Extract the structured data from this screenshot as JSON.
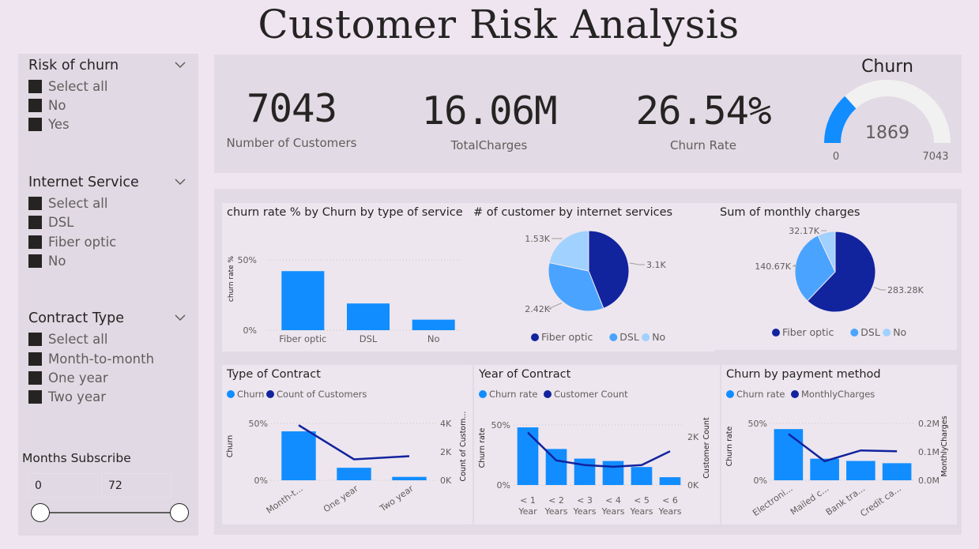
{
  "page_title": "Customer Risk Analysis",
  "slicers": {
    "risk": {
      "title": "Risk of churn",
      "options": [
        "Select all",
        "No",
        "Yes"
      ]
    },
    "internet": {
      "title": "Internet Service",
      "options": [
        "Select all",
        "DSL",
        "Fiber optic",
        "No"
      ]
    },
    "contract": {
      "title": "Contract Type",
      "options": [
        "Select all",
        "Month-to-month",
        "One year",
        "Two year"
      ]
    },
    "months": {
      "title": "Months Subscribe",
      "min": "0",
      "max": "72"
    }
  },
  "kpis": {
    "customers": {
      "value": "7043",
      "label": "Number of Customers"
    },
    "charges": {
      "value": "16.06M",
      "label": "TotalCharges"
    },
    "churn_rate": {
      "value": "26.54%",
      "label": "Churn Rate"
    }
  },
  "colors": {
    "blue": "#118dff",
    "navy": "#12239e",
    "light": "#a0d1ff",
    "mid": "#4aa4ff",
    "gauge_track": "#f1f1f1"
  },
  "chart_data": [
    {
      "id": "gauge",
      "type": "gauge",
      "title": "Churn",
      "value": 1869,
      "min": 0,
      "max": 7043,
      "labels": {
        "value": "1869",
        "min": "0",
        "max": "7043"
      }
    },
    {
      "id": "bar1",
      "type": "bar",
      "title": "churn rate % by Churn by type of service",
      "categories": [
        "Fiber optic",
        "DSL",
        "No"
      ],
      "values": [
        42,
        19,
        7.5
      ],
      "ylabel": "churn rate %",
      "ylim": [
        0,
        50
      ],
      "yticks": [
        "0%",
        "50%"
      ]
    },
    {
      "id": "pie1",
      "type": "pie",
      "title": "# of customer by internet services",
      "slices": [
        {
          "name": "Fiber optic",
          "value": 3.1,
          "label": "3.1K"
        },
        {
          "name": "DSL",
          "value": 2.42,
          "label": "2.42K"
        },
        {
          "name": "No",
          "value": 1.53,
          "label": "1.53K"
        }
      ],
      "legend": [
        "Fiber optic",
        "DSL",
        "No"
      ]
    },
    {
      "id": "pie2",
      "type": "pie",
      "title": "Sum of monthly charges",
      "slices": [
        {
          "name": "Fiber optic",
          "value": 283.28,
          "label": "283.28K"
        },
        {
          "name": "DSL",
          "value": 140.67,
          "label": "140.67K"
        },
        {
          "name": "No",
          "value": 32.17,
          "label": "32.17K"
        }
      ],
      "legend": [
        "Fiber optic",
        "DSL",
        "No"
      ]
    },
    {
      "id": "combo1",
      "type": "bar",
      "title": "Type of Contract",
      "legend": [
        "Churn",
        "Count of Customers"
      ],
      "categories": [
        "Month-t...",
        "One year",
        "Two year"
      ],
      "series": [
        {
          "name": "Churn",
          "kind": "bar",
          "values": [
            43,
            11,
            3
          ]
        },
        {
          "name": "Count of Customers",
          "kind": "line",
          "values": [
            3875,
            1473,
            1695
          ]
        }
      ],
      "ylabel": "Churn",
      "y2label": "Count of Custom...",
      "ylim": [
        0,
        50
      ],
      "y2lim": [
        0,
        4000
      ],
      "yticks": [
        "0%",
        "50%"
      ],
      "y2ticks": [
        "0K",
        "2K",
        "4K"
      ]
    },
    {
      "id": "combo2",
      "type": "bar",
      "title": "Year of Contract",
      "legend": [
        "Churn rate",
        "Customer Count"
      ],
      "categories": [
        "< 1 Year",
        "< 2 Years",
        "< 3 Years",
        "< 4 Years",
        "< 5 Years",
        "< 6 Years"
      ],
      "series": [
        {
          "name": "Churn rate",
          "kind": "bar",
          "values": [
            48,
            30,
            22,
            20,
            15,
            6.5
          ]
        },
        {
          "name": "Customer Count",
          "kind": "line",
          "values": [
            2186,
            1024,
            832,
            762,
            832,
            1407
          ]
        }
      ],
      "ylabel": "Churn rate",
      "y2label": "Customer Count",
      "ylim": [
        0,
        50
      ],
      "y2lim": [
        0,
        2500
      ],
      "yticks": [
        "0%",
        "50%"
      ],
      "y2ticks": [
        "0K",
        "2K"
      ]
    },
    {
      "id": "combo3",
      "type": "bar",
      "title": "Churn by payment method",
      "legend": [
        "Churn rate",
        "MonthlyCharges"
      ],
      "categories": [
        "Electroni...",
        "Mailed c...",
        "Bank tra...",
        "Credit ca..."
      ],
      "series": [
        {
          "name": "Churn rate",
          "kind": "bar",
          "values": [
            45,
            19,
            17,
            15
          ]
        },
        {
          "name": "MonthlyCharges",
          "kind": "line",
          "values": [
            0.163,
            0.067,
            0.105,
            0.102
          ]
        }
      ],
      "ylabel": "Churn rate",
      "y2label": "MonthlyCharges",
      "ylim": [
        0,
        50
      ],
      "y2lim": [
        0,
        0.2
      ],
      "yticks": [
        "0%",
        "50%"
      ],
      "y2ticks": [
        "0.0M",
        "0.1M",
        "0.2M"
      ]
    }
  ]
}
